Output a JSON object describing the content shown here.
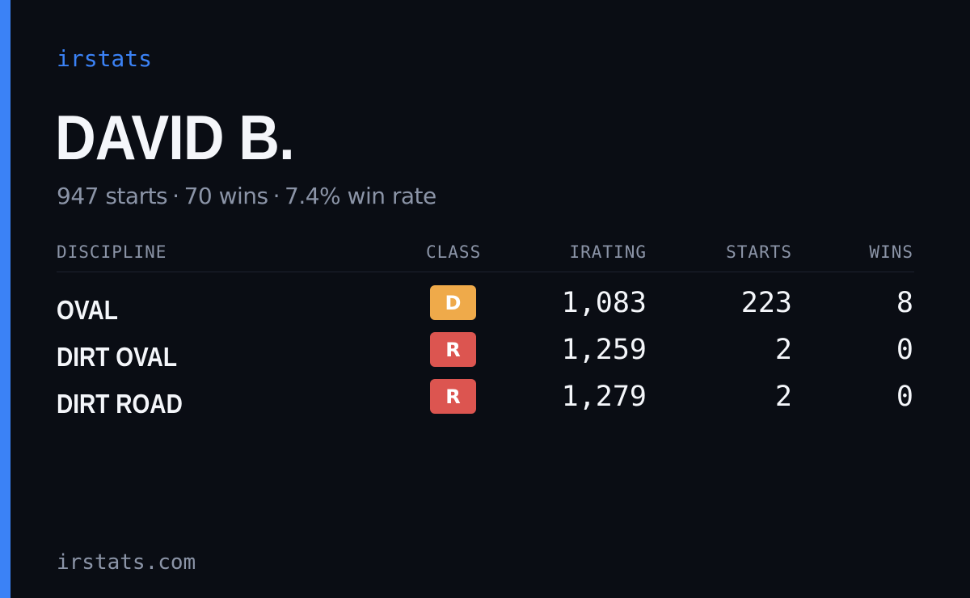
{
  "brand": "irstats",
  "player": {
    "name": "DAVID B.",
    "starts": "947 starts",
    "wins": "70 wins",
    "win_rate": "7.4% win rate",
    "separator": "·"
  },
  "table": {
    "headers": {
      "discipline": "DISCIPLINE",
      "class": "CLASS",
      "irating": "IRATING",
      "starts": "STARTS",
      "wins": "WINS"
    },
    "rows": [
      {
        "discipline": "OVAL",
        "class": "D",
        "class_color": "#efaa4a",
        "irating": "1,083",
        "starts": "223",
        "wins": "8"
      },
      {
        "discipline": "DIRT OVAL",
        "class": "R",
        "class_color": "#dc5550",
        "irating": "1,259",
        "starts": "2",
        "wins": "0"
      },
      {
        "discipline": "DIRT ROAD",
        "class": "R",
        "class_color": "#dc5550",
        "irating": "1,279",
        "starts": "2",
        "wins": "0"
      }
    ]
  },
  "footer": "irstats.com",
  "colors": {
    "accent": "#3b82f6",
    "background": "#0a0d14",
    "muted_text": "#8b94a7",
    "primary_text": "#f4f6fa"
  }
}
